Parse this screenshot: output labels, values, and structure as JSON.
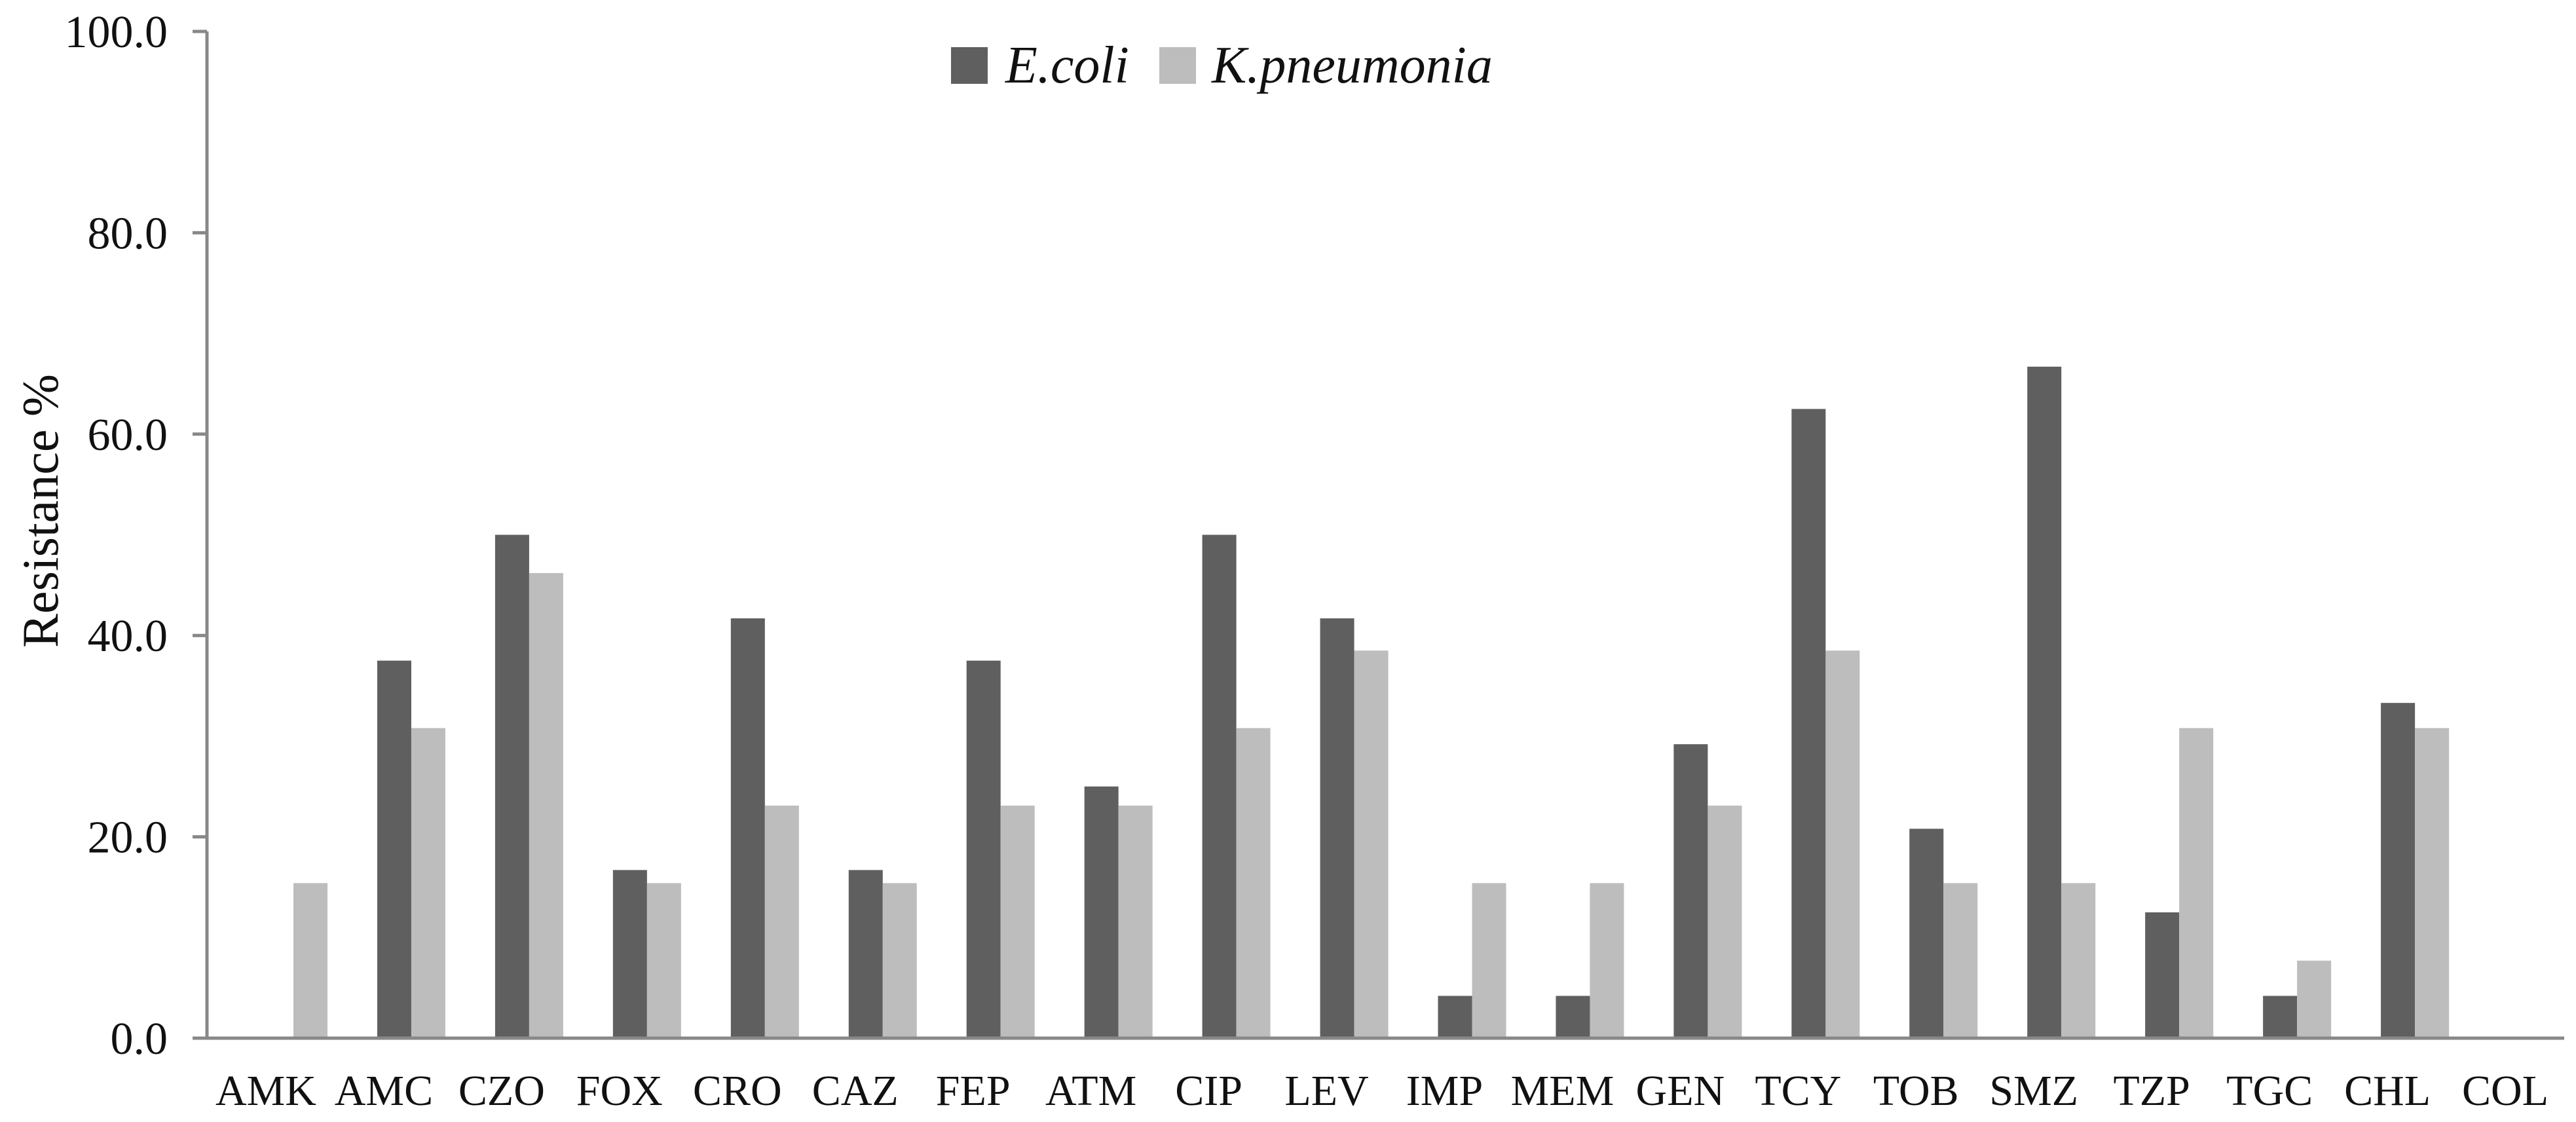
{
  "chart_data": {
    "type": "bar",
    "title": "",
    "xlabel": "",
    "ylabel": "Resistance %",
    "ylim": [
      0,
      100
    ],
    "yticks": [
      "0.0",
      "20.0",
      "40.0",
      "60.0",
      "80.0",
      "100.0"
    ],
    "grid": false,
    "legend_position": "top-center",
    "categories": [
      "AMK",
      "AMC",
      "CZO",
      "FOX",
      "CRO",
      "CAZ",
      "FEP",
      "ATM",
      "CIP",
      "LEV",
      "IMP",
      "MEM",
      "GEN",
      "TCY",
      "TOB",
      "SMZ",
      "TZP",
      "TGC",
      "CHL",
      "COL"
    ],
    "series": [
      {
        "name": "E.coli",
        "color": "#5f5f5f",
        "values": [
          0,
          37.5,
          50.0,
          16.7,
          41.7,
          16.7,
          37.5,
          25.0,
          50.0,
          41.7,
          4.2,
          4.2,
          29.2,
          62.5,
          20.8,
          66.7,
          12.5,
          4.2,
          33.3,
          0
        ]
      },
      {
        "name": "K.pneumonia",
        "color": "#bdbdbd",
        "values": [
          15.4,
          30.8,
          46.2,
          15.4,
          23.1,
          15.4,
          23.1,
          23.1,
          30.8,
          38.5,
          15.4,
          15.4,
          23.1,
          38.5,
          15.4,
          15.4,
          30.8,
          7.7,
          30.8,
          0
        ]
      }
    ]
  }
}
